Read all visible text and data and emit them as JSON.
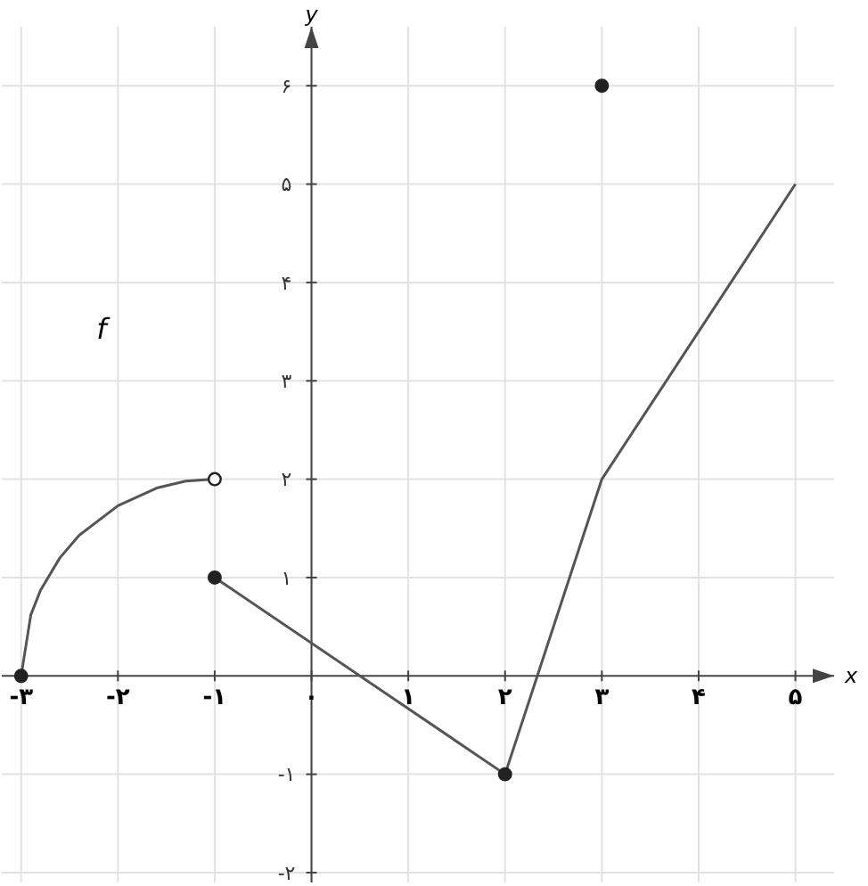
{
  "chart_data": {
    "type": "line",
    "xlabel": "x",
    "ylabel": "y",
    "xlim": [
      -3.2,
      5.4
    ],
    "ylim": [
      -2.1,
      6.6
    ],
    "xticks": [
      {
        "value": -3,
        "label": "-۳"
      },
      {
        "value": -2,
        "label": "-۲"
      },
      {
        "value": -1,
        "label": "-۱"
      },
      {
        "value": 0,
        "label": "۰"
      },
      {
        "value": 1,
        "label": "۱"
      },
      {
        "value": 2,
        "label": "۲"
      },
      {
        "value": 3,
        "label": "۳"
      },
      {
        "value": 4,
        "label": "۴"
      },
      {
        "value": 5,
        "label": "۵"
      }
    ],
    "yticks": [
      {
        "value": -2,
        "label": "-۲"
      },
      {
        "value": -1,
        "label": "-۱"
      },
      {
        "value": 1,
        "label": "۱"
      },
      {
        "value": 2,
        "label": "۲"
      },
      {
        "value": 3,
        "label": "۳"
      },
      {
        "value": 4,
        "label": "۴"
      },
      {
        "value": 5,
        "label": "۵"
      },
      {
        "value": 6,
        "label": "۶"
      }
    ],
    "grid": true,
    "marker": "none",
    "line_style": "solid",
    "series": [
      {
        "color": "#555555",
        "x": [
          -3,
          -2.9,
          -2.8,
          -2.6,
          -2.4,
          -2,
          -1.6,
          -1.3,
          -1
        ],
        "values": [
          0,
          0.62,
          0.87,
          1.2,
          1.43,
          1.73,
          1.91,
          1.98,
          2
        ]
      },
      {
        "color": "#555555",
        "x": [
          -1,
          2
        ],
        "values": [
          1,
          -1
        ]
      },
      {
        "color": "#555555",
        "x": [
          2,
          3,
          5
        ],
        "values": [
          -1,
          2,
          5
        ]
      },
      {
        "type": "scatter",
        "marker": "circle",
        "color": "#222222",
        "x": [
          -3,
          -1,
          2,
          3
        ],
        "values": [
          0,
          1,
          -1,
          6
        ]
      },
      {
        "type": "scatter",
        "marker": "circle",
        "color": "#ffffff",
        "x": [
          -1
        ],
        "values": [
          2
        ]
      }
    ],
    "annotations": [
      "f"
    ]
  }
}
